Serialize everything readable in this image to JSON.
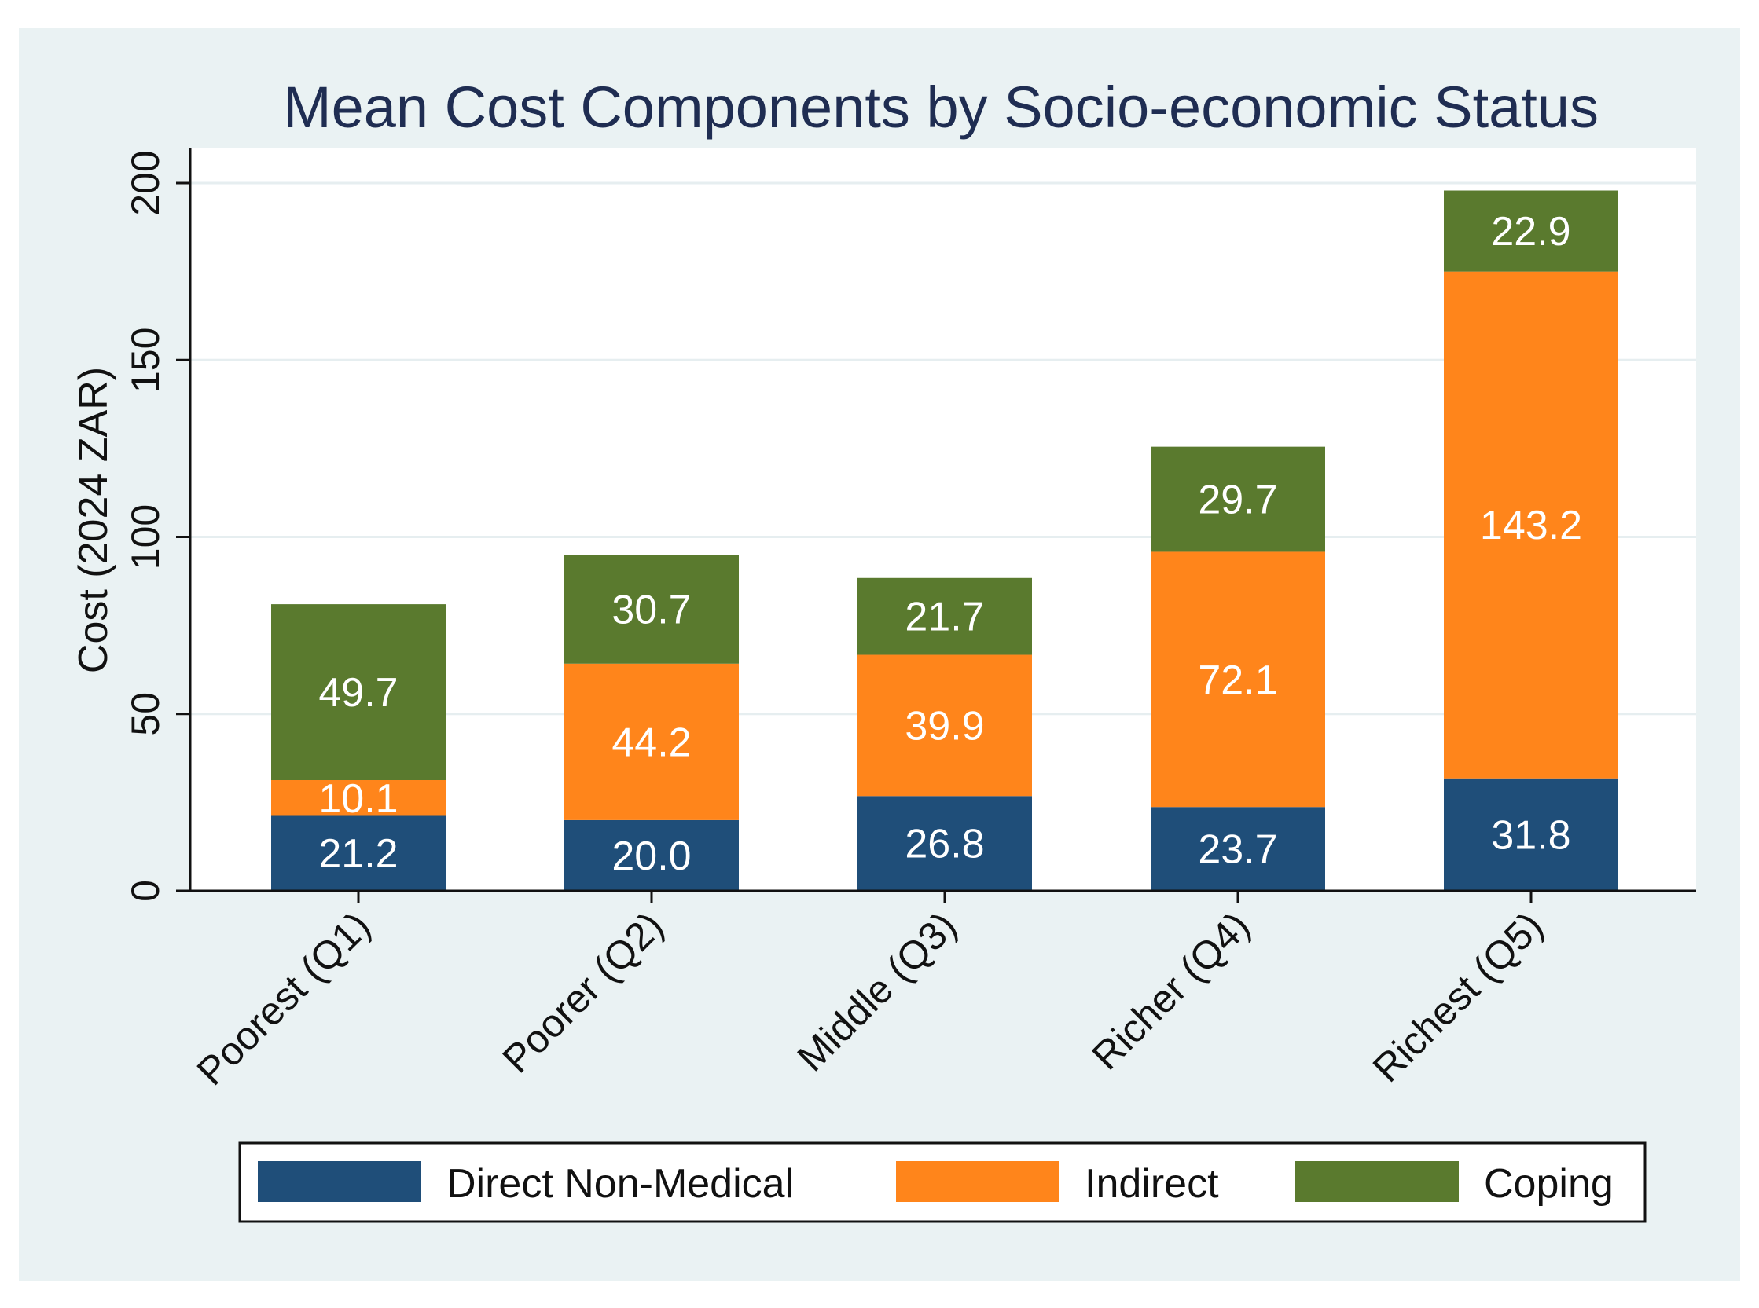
{
  "chart_data": {
    "type": "bar",
    "stacked": true,
    "title": "Mean Cost Components by Socio-economic Status",
    "xlabel": "",
    "ylabel": "Cost (2024 ZAR)",
    "ylim": [
      0,
      210
    ],
    "yticks": [
      "0",
      "50",
      "100",
      "150",
      "200"
    ],
    "ytick_values": [
      0,
      50,
      100,
      150,
      200
    ],
    "grid": true,
    "categories": [
      "Poorest (Q1)",
      "Poorer (Q2)",
      "Middle (Q3)",
      "Richer (Q4)",
      "Richest (Q5)"
    ],
    "series": [
      {
        "name": "Direct Non-Medical",
        "color": "#1f4e79",
        "values": [
          21.2,
          20.0,
          26.8,
          23.7,
          31.8
        ],
        "labels": [
          "21.2",
          "20.0",
          "26.8",
          "23.7",
          "31.8"
        ]
      },
      {
        "name": "Indirect",
        "color": "#ff851b",
        "values": [
          10.1,
          44.2,
          39.9,
          72.1,
          143.2
        ],
        "labels": [
          "10.1",
          "44.2",
          "39.9",
          "72.1",
          "143.2"
        ]
      },
      {
        "name": "Coping",
        "color": "#5a7a2e",
        "values": [
          49.7,
          30.7,
          21.7,
          29.7,
          22.9
        ],
        "labels": [
          "49.7",
          "30.7",
          "21.7",
          "29.7",
          "22.9"
        ]
      }
    ],
    "legend_position": "bottom"
  }
}
